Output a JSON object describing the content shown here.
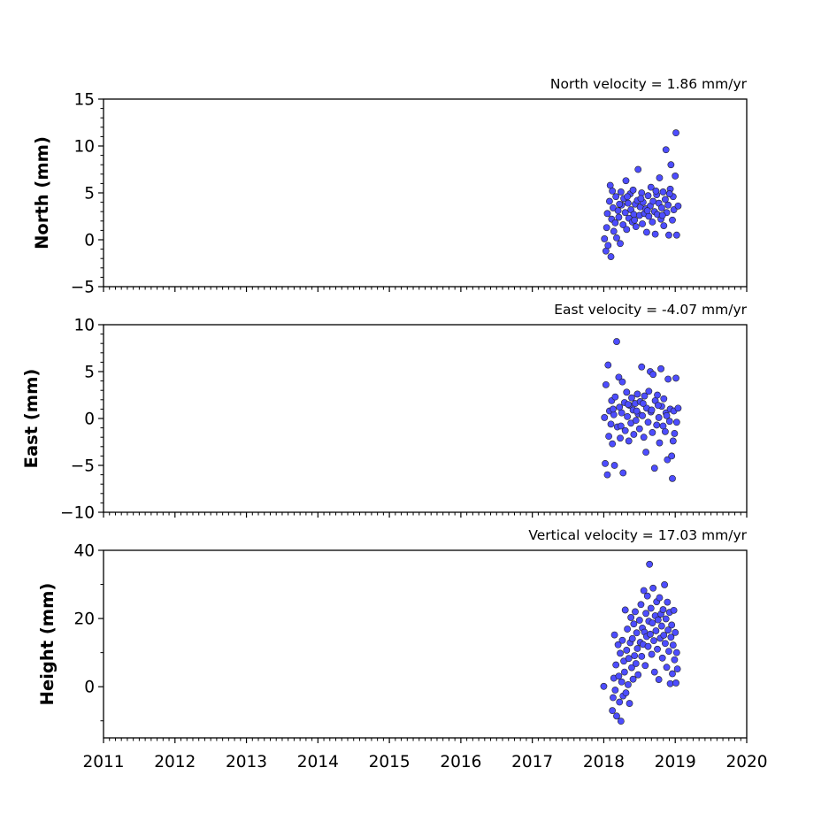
{
  "chart_data": [
    {
      "type": "scatter",
      "title": "North velocity = 1.86 mm/yr",
      "ylabel": "North (mm)",
      "xlabel": "",
      "xlim": [
        2011,
        2020
      ],
      "ylim": [
        -5,
        15
      ],
      "y_ticks": [
        -5,
        0,
        5,
        10,
        15
      ],
      "y_tick_labels": [
        "−5",
        "0",
        "5",
        "10",
        "15"
      ],
      "x_ticks": [
        2011,
        2012,
        2013,
        2014,
        2015,
        2016,
        2017,
        2018,
        2019,
        2020
      ],
      "x_tick_labels": [],
      "grid": false,
      "marker_color": "#4d4dff",
      "marker_edge": "#222222",
      "points": [
        [
          2018.01,
          0.1
        ],
        [
          2018.03,
          -1.2
        ],
        [
          2018.04,
          1.3
        ],
        [
          2018.05,
          2.8
        ],
        [
          2018.06,
          -0.6
        ],
        [
          2018.08,
          4.1
        ],
        [
          2018.09,
          5.8
        ],
        [
          2018.1,
          -1.8
        ],
        [
          2018.11,
          2.2
        ],
        [
          2018.13,
          3.4
        ],
        [
          2018.14,
          0.9
        ],
        [
          2018.16,
          1.8
        ],
        [
          2018.17,
          4.6
        ],
        [
          2018.18,
          0.2
        ],
        [
          2018.2,
          3.1
        ],
        [
          2018.21,
          2.4
        ],
        [
          2018.23,
          -0.4
        ],
        [
          2018.24,
          5.1
        ],
        [
          2018.25,
          3.7
        ],
        [
          2018.27,
          1.6
        ],
        [
          2018.28,
          4.4
        ],
        [
          2018.3,
          2.9
        ],
        [
          2018.31,
          6.3
        ],
        [
          2018.32,
          1.1
        ],
        [
          2018.34,
          3.9
        ],
        [
          2018.35,
          2.3
        ],
        [
          2018.37,
          4.9
        ],
        [
          2018.38,
          3.2
        ],
        [
          2018.4,
          1.9
        ],
        [
          2018.41,
          5.3
        ],
        [
          2018.42,
          2.7
        ],
        [
          2018.44,
          3.8
        ],
        [
          2018.45,
          1.4
        ],
        [
          2018.47,
          4.2
        ],
        [
          2018.48,
          7.5
        ],
        [
          2018.5,
          2.6
        ],
        [
          2018.51,
          3.5
        ],
        [
          2018.53,
          5.0
        ],
        [
          2018.54,
          1.7
        ],
        [
          2018.55,
          4.0
        ],
        [
          2018.57,
          2.8
        ],
        [
          2018.59,
          3.3
        ],
        [
          2018.6,
          0.8
        ],
        [
          2018.62,
          4.7
        ],
        [
          2018.63,
          2.5
        ],
        [
          2018.65,
          3.6
        ],
        [
          2018.66,
          5.6
        ],
        [
          2018.68,
          1.9
        ],
        [
          2018.69,
          4.1
        ],
        [
          2018.71,
          3.0
        ],
        [
          2018.72,
          0.6
        ],
        [
          2018.74,
          4.8
        ],
        [
          2018.75,
          2.7
        ],
        [
          2018.77,
          3.9
        ],
        [
          2018.78,
          6.6
        ],
        [
          2018.8,
          2.2
        ],
        [
          2018.81,
          3.4
        ],
        [
          2018.83,
          5.1
        ],
        [
          2018.84,
          1.5
        ],
        [
          2018.86,
          4.3
        ],
        [
          2018.87,
          9.6
        ],
        [
          2018.88,
          2.9
        ],
        [
          2018.9,
          3.7
        ],
        [
          2018.91,
          0.5
        ],
        [
          2018.93,
          5.4
        ],
        [
          2018.94,
          8.0
        ],
        [
          2018.96,
          2.1
        ],
        [
          2018.97,
          4.6
        ],
        [
          2018.98,
          3.2
        ],
        [
          2019.0,
          6.8
        ],
        [
          2019.01,
          11.4
        ],
        [
          2019.02,
          0.5
        ],
        [
          2019.04,
          3.6
        ],
        [
          2018.12,
          5.2
        ],
        [
          2018.22,
          3.8
        ],
        [
          2018.33,
          4.6
        ],
        [
          2018.43,
          2.1
        ],
        [
          2018.52,
          4.4
        ],
        [
          2018.61,
          3.1
        ],
        [
          2018.73,
          5.2
        ],
        [
          2018.82,
          2.6
        ],
        [
          2018.92,
          4.9
        ]
      ]
    },
    {
      "type": "scatter",
      "title": "East velocity = -4.07 mm/yr",
      "ylabel": "East (mm)",
      "xlabel": "",
      "xlim": [
        2011,
        2020
      ],
      "ylim": [
        -10,
        10
      ],
      "y_ticks": [
        -10,
        -5,
        0,
        5,
        10
      ],
      "y_tick_labels": [
        "−10",
        "−5",
        "0",
        "5",
        "10"
      ],
      "x_ticks": [
        2011,
        2012,
        2013,
        2014,
        2015,
        2016,
        2017,
        2018,
        2019,
        2020
      ],
      "x_tick_labels": [],
      "grid": false,
      "marker_color": "#4d4dff",
      "marker_edge": "#222222",
      "points": [
        [
          2018.01,
          0.1
        ],
        [
          2018.02,
          -4.8
        ],
        [
          2018.03,
          3.6
        ],
        [
          2018.05,
          -6.0
        ],
        [
          2018.06,
          5.7
        ],
        [
          2018.07,
          -1.9
        ],
        [
          2018.08,
          0.8
        ],
        [
          2018.1,
          -0.6
        ],
        [
          2018.11,
          1.9
        ],
        [
          2018.12,
          -2.7
        ],
        [
          2018.14,
          0.4
        ],
        [
          2018.15,
          -5.0
        ],
        [
          2018.16,
          2.3
        ],
        [
          2018.18,
          8.2
        ],
        [
          2018.19,
          -0.9
        ],
        [
          2018.21,
          4.4
        ],
        [
          2018.22,
          1.2
        ],
        [
          2018.23,
          -2.1
        ],
        [
          2018.25,
          0.6
        ],
        [
          2018.26,
          3.9
        ],
        [
          2018.27,
          -5.8
        ],
        [
          2018.29,
          1.7
        ],
        [
          2018.3,
          -1.3
        ],
        [
          2018.32,
          2.8
        ],
        [
          2018.33,
          0.2
        ],
        [
          2018.35,
          -2.4
        ],
        [
          2018.36,
          1.4
        ],
        [
          2018.38,
          -0.5
        ],
        [
          2018.39,
          2.2
        ],
        [
          2018.41,
          0.9
        ],
        [
          2018.42,
          -1.7
        ],
        [
          2018.44,
          1.6
        ],
        [
          2018.45,
          -0.2
        ],
        [
          2018.47,
          2.6
        ],
        [
          2018.48,
          0.5
        ],
        [
          2018.5,
          -1.1
        ],
        [
          2018.51,
          1.8
        ],
        [
          2018.53,
          5.5
        ],
        [
          2018.54,
          0.3
        ],
        [
          2018.56,
          -2.0
        ],
        [
          2018.57,
          2.4
        ],
        [
          2018.59,
          -3.6
        ],
        [
          2018.6,
          1.1
        ],
        [
          2018.62,
          -0.4
        ],
        [
          2018.63,
          2.9
        ],
        [
          2018.65,
          5.0
        ],
        [
          2018.66,
          0.7
        ],
        [
          2018.68,
          -1.5
        ],
        [
          2018.69,
          4.7
        ],
        [
          2018.71,
          -5.3
        ],
        [
          2018.72,
          1.9
        ],
        [
          2018.74,
          -0.7
        ],
        [
          2018.75,
          2.5
        ],
        [
          2018.77,
          0.1
        ],
        [
          2018.78,
          -2.6
        ],
        [
          2018.8,
          5.3
        ],
        [
          2018.81,
          1.3
        ],
        [
          2018.83,
          -0.8
        ],
        [
          2018.84,
          2.1
        ],
        [
          2018.86,
          -1.4
        ],
        [
          2018.87,
          0.6
        ],
        [
          2018.89,
          -4.4
        ],
        [
          2018.9,
          4.2
        ],
        [
          2018.92,
          -0.3
        ],
        [
          2018.93,
          1.0
        ],
        [
          2018.95,
          -4.0
        ],
        [
          2018.96,
          -6.4
        ],
        [
          2018.98,
          0.8
        ],
        [
          2018.99,
          -1.6
        ],
        [
          2019.01,
          4.3
        ],
        [
          2019.02,
          -0.4
        ],
        [
          2019.04,
          1.1
        ],
        [
          2018.13,
          1.0
        ],
        [
          2018.24,
          -0.8
        ],
        [
          2018.34,
          1.5
        ],
        [
          2018.46,
          0.8
        ],
        [
          2018.55,
          1.6
        ],
        [
          2018.67,
          0.9
        ],
        [
          2018.76,
          1.4
        ],
        [
          2018.88,
          0.3
        ],
        [
          2018.97,
          -2.4
        ]
      ]
    },
    {
      "type": "scatter",
      "title": "Vertical velocity = 17.03 mm/yr",
      "ylabel": "Height (mm)",
      "xlabel": "",
      "xlim": [
        2011,
        2020
      ],
      "ylim": [
        -15,
        40
      ],
      "y_ticks": [
        0,
        20,
        40
      ],
      "y_tick_labels": [
        "0",
        "20",
        "40"
      ],
      "y_minor_ticks": [
        -10,
        10,
        30
      ],
      "x_ticks": [
        2011,
        2012,
        2013,
        2014,
        2015,
        2016,
        2017,
        2018,
        2019,
        2020
      ],
      "x_tick_labels": [
        "2011",
        "2012",
        "2013",
        "2014",
        "2015",
        "2016",
        "2017",
        "2018",
        "2019",
        "2020"
      ],
      "grid": false,
      "marker_color": "#4d4dff",
      "marker_edge": "#222222",
      "points": [
        [
          2018.0,
          0.1
        ],
        [
          2018.12,
          -7.0
        ],
        [
          2018.13,
          -3.2
        ],
        [
          2018.14,
          2.5
        ],
        [
          2018.15,
          15.2
        ],
        [
          2018.16,
          -1.0
        ],
        [
          2018.17,
          6.4
        ],
        [
          2018.18,
          -8.6
        ],
        [
          2018.2,
          12.3
        ],
        [
          2018.21,
          3.1
        ],
        [
          2018.22,
          -4.5
        ],
        [
          2018.23,
          9.8
        ],
        [
          2018.24,
          -10.1
        ],
        [
          2018.25,
          1.4
        ],
        [
          2018.26,
          13.6
        ],
        [
          2018.27,
          -2.7
        ],
        [
          2018.28,
          7.5
        ],
        [
          2018.29,
          4.3
        ],
        [
          2018.3,
          22.5
        ],
        [
          2018.31,
          -1.8
        ],
        [
          2018.32,
          10.7
        ],
        [
          2018.33,
          16.9
        ],
        [
          2018.34,
          0.6
        ],
        [
          2018.35,
          8.3
        ],
        [
          2018.36,
          -4.9
        ],
        [
          2018.37,
          12.9
        ],
        [
          2018.38,
          20.3
        ],
        [
          2018.39,
          5.6
        ],
        [
          2018.4,
          14.1
        ],
        [
          2018.41,
          2.2
        ],
        [
          2018.42,
          18.4
        ],
        [
          2018.43,
          9.1
        ],
        [
          2018.44,
          22.0
        ],
        [
          2018.45,
          6.8
        ],
        [
          2018.46,
          15.8
        ],
        [
          2018.47,
          11.2
        ],
        [
          2018.48,
          3.5
        ],
        [
          2018.5,
          19.5
        ],
        [
          2018.51,
          13.0
        ],
        [
          2018.52,
          24.1
        ],
        [
          2018.53,
          8.9
        ],
        [
          2018.54,
          17.2
        ],
        [
          2018.55,
          12.4
        ],
        [
          2018.56,
          28.2
        ],
        [
          2018.57,
          16.0
        ],
        [
          2018.58,
          6.2
        ],
        [
          2018.59,
          21.5
        ],
        [
          2018.6,
          14.7
        ],
        [
          2018.61,
          26.6
        ],
        [
          2018.62,
          11.8
        ],
        [
          2018.63,
          19.2
        ],
        [
          2018.64,
          35.9
        ],
        [
          2018.65,
          15.4
        ],
        [
          2018.66,
          23.0
        ],
        [
          2018.67,
          9.5
        ],
        [
          2018.68,
          18.7
        ],
        [
          2018.69,
          28.9
        ],
        [
          2018.7,
          13.5
        ],
        [
          2018.71,
          4.3
        ],
        [
          2018.72,
          20.8
        ],
        [
          2018.73,
          16.4
        ],
        [
          2018.74,
          24.9
        ],
        [
          2018.75,
          11.0
        ],
        [
          2018.76,
          19.6
        ],
        [
          2018.77,
          2.1
        ],
        [
          2018.78,
          26.1
        ],
        [
          2018.79,
          14.2
        ],
        [
          2018.8,
          21.3
        ],
        [
          2018.81,
          17.8
        ],
        [
          2018.82,
          8.4
        ],
        [
          2018.83,
          22.6
        ],
        [
          2018.84,
          15.1
        ],
        [
          2018.85,
          29.9
        ],
        [
          2018.86,
          12.7
        ],
        [
          2018.87,
          19.9
        ],
        [
          2018.88,
          5.7
        ],
        [
          2018.89,
          24.8
        ],
        [
          2018.9,
          16.6
        ],
        [
          2018.91,
          10.4
        ],
        [
          2018.92,
          21.8
        ],
        [
          2018.93,
          0.9
        ],
        [
          2018.94,
          14.5
        ],
        [
          2018.95,
          18.1
        ],
        [
          2018.96,
          3.8
        ],
        [
          2018.97,
          12.2
        ],
        [
          2018.98,
          22.4
        ],
        [
          2018.99,
          7.9
        ],
        [
          2019.0,
          15.9
        ],
        [
          2019.01,
          1.1
        ],
        [
          2019.02,
          10.0
        ],
        [
          2019.03,
          5.2
        ]
      ]
    }
  ]
}
